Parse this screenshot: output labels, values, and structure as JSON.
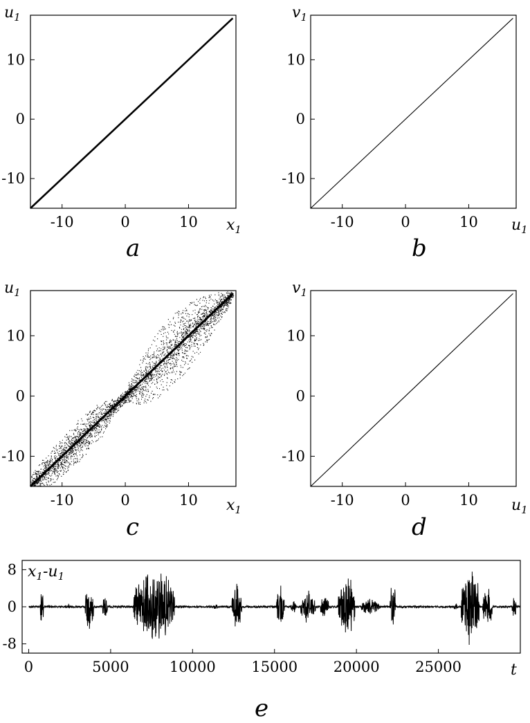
{
  "figure": {
    "panel_labels": [
      "a",
      "b",
      "c",
      "d",
      "e"
    ]
  },
  "chart_data": [
    {
      "id": "a",
      "type": "line",
      "xlabel": "x",
      "xlabel_sub": "1",
      "ylabel": "u",
      "ylabel_sub": "1",
      "xlim": [
        -15,
        17.5
      ],
      "ylim": [
        -15,
        17.5
      ],
      "xticks": [
        -10,
        0,
        10
      ],
      "yticks": [
        -10,
        0,
        10
      ],
      "x": [
        -15,
        17
      ],
      "y": [
        -15,
        17
      ],
      "grid": false
    },
    {
      "id": "b",
      "type": "line",
      "xlabel": "u",
      "xlabel_sub": "1",
      "ylabel": "v",
      "ylabel_sub": "1",
      "xlim": [
        -15,
        17.5
      ],
      "ylim": [
        -15,
        17.5
      ],
      "xticks": [
        -10,
        0,
        10
      ],
      "yticks": [
        -10,
        0,
        10
      ],
      "x": [
        -15,
        17
      ],
      "y": [
        -15,
        17
      ],
      "grid": false
    },
    {
      "id": "c",
      "type": "scatter",
      "xlabel": "x",
      "xlabel_sub": "1",
      "ylabel": "u",
      "ylabel_sub": "1",
      "xlim": [
        -15,
        17.5
      ],
      "ylim": [
        -15,
        17.5
      ],
      "xticks": [
        -10,
        0,
        10
      ],
      "yticks": [
        -10,
        0,
        10
      ],
      "x_range": [
        -15,
        17
      ],
      "spread_envelope": {
        "x": [
          -15,
          -12,
          -8,
          -4,
          -1,
          0,
          3,
          6,
          9,
          12,
          15,
          17
        ],
        "half_width": [
          1.5,
          3,
          3.5,
          3,
          1,
          1,
          4.5,
          6,
          6,
          4.5,
          2.5,
          0.8
        ]
      },
      "points": 9000,
      "grid": false
    },
    {
      "id": "d",
      "type": "line",
      "xlabel": "u",
      "xlabel_sub": "1",
      "ylabel": "v",
      "ylabel_sub": "1",
      "xlim": [
        -15,
        17.5
      ],
      "ylim": [
        -15,
        17.5
      ],
      "xticks": [
        -10,
        0,
        10
      ],
      "yticks": [
        -10,
        0,
        10
      ],
      "x": [
        -15,
        17
      ],
      "y": [
        -15,
        17
      ],
      "grid": false
    },
    {
      "id": "e",
      "type": "line",
      "xlabel": "t",
      "ylabel": "x",
      "ylabel_sub": "1",
      "ylabel_mid": "-u",
      "ylabel_sub2": "1",
      "xlim": [
        -400,
        30000
      ],
      "ylim": [
        -10,
        10
      ],
      "xticks": [
        0,
        5000,
        10000,
        15000,
        20000,
        25000
      ],
      "yticks": [
        8,
        0,
        -8
      ],
      "baseline": 0,
      "bursts": [
        {
          "t": [
            700,
            900
          ],
          "amp": 6
        },
        {
          "t": [
            2400,
            2500
          ],
          "amp": 1
        },
        {
          "t": [
            3450,
            3950
          ],
          "amp": 7
        },
        {
          "t": [
            4500,
            4800
          ],
          "amp": 3
        },
        {
          "t": [
            6400,
            8900
          ],
          "amp": 10
        },
        {
          "t": [
            11300,
            11500
          ],
          "amp": 1
        },
        {
          "t": [
            12400,
            13000
          ],
          "amp": 6
        },
        {
          "t": [
            15100,
            15600
          ],
          "amp": 6
        },
        {
          "t": [
            16000,
            16300
          ],
          "amp": 2
        },
        {
          "t": [
            16600,
            17500
          ],
          "amp": 4
        },
        {
          "t": [
            17800,
            18300
          ],
          "amp": 3
        },
        {
          "t": [
            18900,
            19900
          ],
          "amp": 8
        },
        {
          "t": [
            20300,
            21400
          ],
          "amp": 2
        },
        {
          "t": [
            22050,
            22400
          ],
          "amp": 6
        },
        {
          "t": [
            25950,
            26150
          ],
          "amp": 1
        },
        {
          "t": [
            26400,
            27500
          ],
          "amp": 10
        },
        {
          "t": [
            27700,
            28300
          ],
          "amp": 5
        },
        {
          "t": [
            29500,
            29750
          ],
          "amp": 3
        }
      ],
      "noise_amp": 0.4,
      "grid": false
    }
  ]
}
